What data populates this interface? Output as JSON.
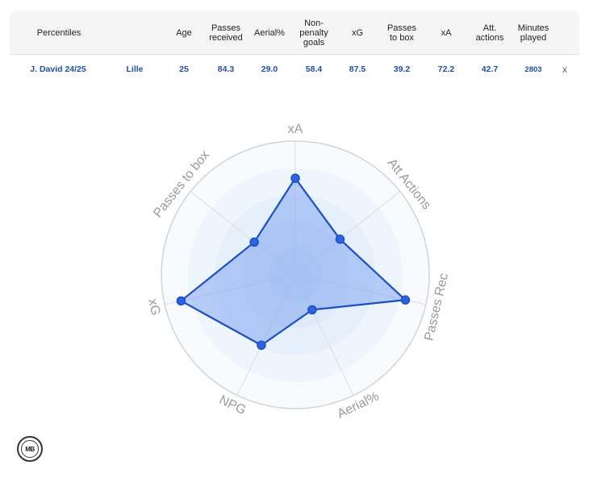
{
  "table": {
    "headers": {
      "percentiles": "Percentiles",
      "age": "Age",
      "passes_received": "Passes\nreceived",
      "aerial": "Aerial%",
      "npg": "Non-\npenalty\ngoals",
      "xg": "xG",
      "passes_to_box": "Passes\nto box",
      "xa": "xA",
      "att_actions": "Att.\nactions",
      "minutes": "Minutes\nplayed"
    },
    "row": {
      "player": "J. David 24/25",
      "team": "Lille",
      "age": "25",
      "passes_received": "84.3",
      "aerial": "29.0",
      "npg": "58.4",
      "xg": "87.5",
      "passes_to_box": "39.2",
      "xa": "72.2",
      "att_actions": "42.7",
      "minutes": "2803",
      "remove": "x"
    }
  },
  "logo": {
    "text": "MB"
  },
  "colors": {
    "accent": "#1f4fa8",
    "series_line": "#1a4fc4",
    "series_fill": "#6f97ef",
    "point": "#2e63e0",
    "grid": "#d3d3d3",
    "axis_label": "#9a9a9a"
  },
  "chart_data": {
    "type": "radar",
    "axes": [
      "xA",
      "Att Actions",
      "Passes Rec",
      "Aerial%",
      "NPG",
      "xG",
      "Passes to box"
    ],
    "series": [
      {
        "name": "J. David 24/25",
        "values": [
          72.2,
          42.7,
          84.3,
          29.0,
          58.4,
          87.5,
          39.2
        ]
      }
    ],
    "range": [
      0,
      100
    ],
    "grid": true
  }
}
